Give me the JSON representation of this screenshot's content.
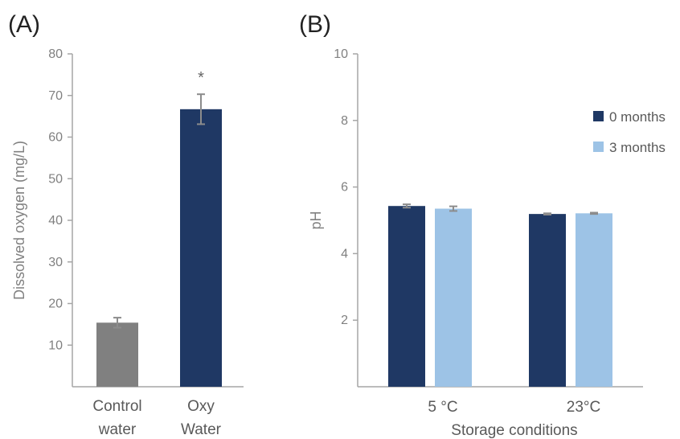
{
  "chart_data": [
    {
      "panel_label": "(A)",
      "type": "bar",
      "categories": [
        [
          "Control",
          "water"
        ],
        [
          "Oxy",
          "Water"
        ]
      ],
      "values": [
        15.4,
        66.7
      ],
      "errors": [
        1.2,
        3.6
      ],
      "colors": [
        "#808080",
        "#1f3864"
      ],
      "ylabel": "Dissolved oxygen (mg/L)",
      "ylim": [
        0,
        80
      ],
      "yticks": [
        10,
        20,
        30,
        40,
        50,
        60,
        70,
        80
      ],
      "annotation": {
        "text": "*",
        "category_index": 1
      },
      "grid": false,
      "legend": "none"
    },
    {
      "panel_label": "(B)",
      "type": "bar",
      "categories": [
        "5 °C",
        "23°C"
      ],
      "series": [
        {
          "name": "0 months",
          "values": [
            5.43,
            5.19
          ],
          "errors": [
            0.05,
            0.02
          ],
          "color": "#1f3864"
        },
        {
          "name": "3 months",
          "values": [
            5.35,
            5.21
          ],
          "errors": [
            0.07,
            0.02
          ],
          "color": "#9dc3e6"
        }
      ],
      "xlabel": "Storage conditions",
      "ylabel": "pH",
      "ylim": [
        0,
        10
      ],
      "yticks": [
        2,
        4,
        6,
        8,
        10
      ],
      "grid": false,
      "legend": "top-right"
    }
  ]
}
